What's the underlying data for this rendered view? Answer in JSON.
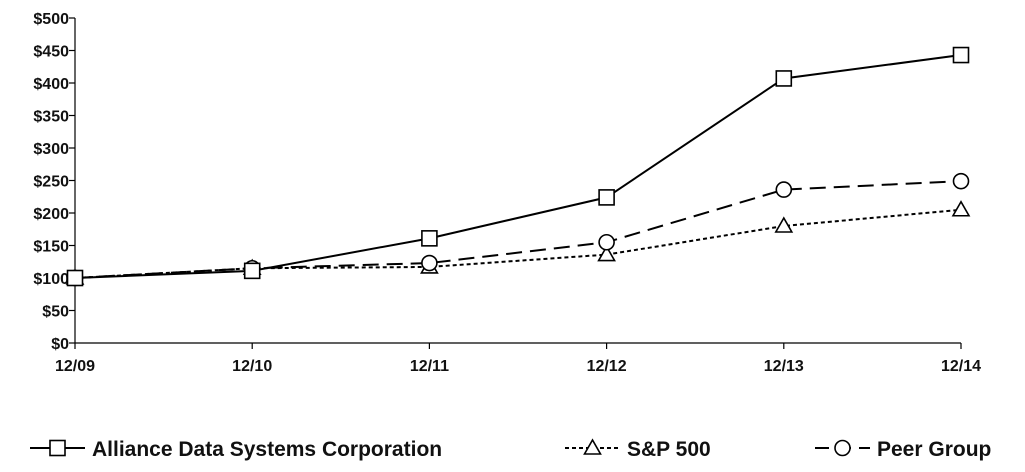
{
  "chart_data": {
    "type": "line",
    "title": "",
    "xlabel": "",
    "ylabel": "",
    "categories": [
      "12/09",
      "12/10",
      "12/11",
      "12/12",
      "12/13",
      "12/14"
    ],
    "y_ticks": [
      "$0",
      "$50",
      "$100",
      "$150",
      "$200",
      "$250",
      "$300",
      "$350",
      "$400",
      "$450",
      "$500"
    ],
    "ylim": [
      0,
      500
    ],
    "grid": false,
    "legend_position": "bottom",
    "series": [
      {
        "name": "Alliance Data Systems Corporation",
        "values": [
          100,
          111,
          161,
          224,
          407,
          443
        ],
        "marker": "square",
        "line_style": "solid"
      },
      {
        "name": "S&P 500",
        "values": [
          100,
          115,
          117,
          136,
          180,
          205
        ],
        "marker": "triangle",
        "line_style": "dotted"
      },
      {
        "name": "Peer Group",
        "values": [
          100,
          115,
          123,
          155,
          236,
          249
        ],
        "marker": "circle",
        "line_style": "dashed"
      }
    ],
    "colors": {
      "line": "#000000",
      "text": "#111111",
      "background": "#ffffff"
    }
  }
}
